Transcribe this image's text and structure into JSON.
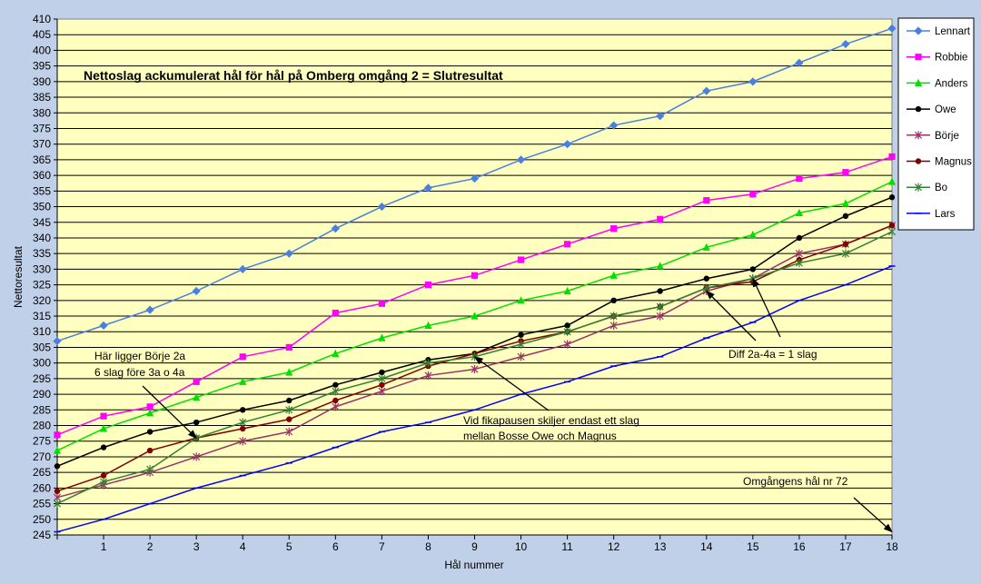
{
  "chart_data": {
    "type": "line",
    "title": "Nettoslag ackumulerat hål för hål på Omberg omgång 2 = Slutresultat",
    "xlabel": "Hål nummer",
    "ylabel": "Nettoresultat",
    "x": [
      0,
      1,
      2,
      3,
      4,
      5,
      6,
      7,
      8,
      9,
      10,
      11,
      12,
      13,
      14,
      15,
      16,
      17,
      18
    ],
    "x_tick_labels": [
      "1",
      "2",
      "3",
      "4",
      "5",
      "6",
      "7",
      "8",
      "9",
      "10",
      "11",
      "12",
      "13",
      "14",
      "15",
      "16",
      "17",
      "18"
    ],
    "xlim": [
      0,
      18
    ],
    "ylim": [
      245,
      410
    ],
    "y_tick_step": 5,
    "grid": true,
    "legend_position": "right",
    "background": "#ffffc0",
    "series": [
      {
        "name": "Lennart",
        "color": "#4a7fe0",
        "marker": "diamond",
        "values": [
          307,
          312,
          317,
          323,
          330,
          335,
          343,
          350,
          356,
          359,
          365,
          370,
          376,
          379,
          387,
          390,
          396,
          402,
          407
        ]
      },
      {
        "name": "Robbie",
        "color": "#ff00ff",
        "marker": "square",
        "values": [
          277,
          283,
          286,
          294,
          302,
          305,
          316,
          319,
          325,
          328,
          333,
          338,
          343,
          346,
          352,
          354,
          359,
          361,
          366
        ]
      },
      {
        "name": "Anders",
        "color": "#00e000",
        "marker": "triangle",
        "values": [
          272,
          279,
          284,
          289,
          294,
          297,
          303,
          308,
          312,
          315,
          320,
          323,
          328,
          331,
          337,
          341,
          348,
          351,
          358
        ]
      },
      {
        "name": "Owe",
        "color": "#000000",
        "marker": "circle",
        "values": [
          267,
          273,
          278,
          281,
          285,
          288,
          293,
          297,
          301,
          303,
          309,
          312,
          320,
          323,
          327,
          330,
          340,
          347,
          353
        ]
      },
      {
        "name": "Börje",
        "color": "#993366",
        "marker": "star",
        "values": [
          257,
          261,
          265,
          270,
          275,
          278,
          286,
          291,
          296,
          298,
          302,
          306,
          312,
          315,
          323,
          327,
          335,
          338,
          344
        ]
      },
      {
        "name": "Magnus",
        "color": "#800000",
        "marker": "circle",
        "values": [
          259,
          264,
          272,
          276,
          279,
          282,
          288,
          293,
          299,
          303,
          307,
          310,
          315,
          318,
          324,
          326,
          333,
          338,
          344
        ]
      },
      {
        "name": "Bo",
        "color": "#338033",
        "marker": "star",
        "values": [
          255,
          262,
          266,
          276,
          281,
          285,
          291,
          295,
          300,
          302,
          306,
          310,
          315,
          318,
          324,
          327,
          332,
          335,
          342
        ]
      },
      {
        "name": "Lars",
        "color": "#0000ff",
        "marker": "dash",
        "values": [
          246,
          250,
          255,
          260,
          264,
          268,
          273,
          278,
          281,
          285,
          290,
          294,
          299,
          302,
          308,
          313,
          320,
          325,
          331
        ]
      }
    ],
    "annotations": [
      {
        "id": "borje",
        "lines": [
          "Här ligger Börje 2a",
          "6 slag före 3a o 4a"
        ],
        "arrow_to": [
          3,
          276
        ]
      },
      {
        "id": "fika",
        "lines": [
          "Vid fikapausen skiljer endast ett slag",
          "mellan Bosse Owe och Magnus"
        ],
        "arrow_to": [
          9,
          302
        ]
      },
      {
        "id": "diff",
        "lines": [
          "Diff 2a-4a = 1 slag"
        ],
        "arrows_to": [
          [
            14,
            323
          ],
          [
            15,
            327
          ]
        ]
      },
      {
        "id": "hal72",
        "lines": [
          "Omgångens hål nr 72"
        ],
        "arrow_to": [
          18,
          246
        ]
      }
    ]
  }
}
